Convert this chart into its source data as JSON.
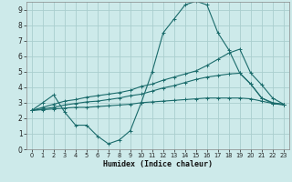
{
  "xlabel": "Humidex (Indice chaleur)",
  "background_color": "#cdeaea",
  "grid_color": "#aacece",
  "line_color": "#1a6b6b",
  "xlim": [
    -0.5,
    23.5
  ],
  "ylim": [
    0,
    9.5
  ],
  "xticks": [
    0,
    1,
    2,
    3,
    4,
    5,
    6,
    7,
    8,
    9,
    10,
    11,
    12,
    13,
    14,
    15,
    16,
    17,
    18,
    19,
    20,
    21,
    22,
    23
  ],
  "yticks": [
    0,
    1,
    2,
    3,
    4,
    5,
    6,
    7,
    8,
    9
  ],
  "series": [
    {
      "x": [
        0,
        1,
        2,
        3,
        4,
        5,
        6,
        7,
        8,
        9,
        10,
        11,
        12,
        13,
        14,
        15,
        16,
        17,
        18,
        19,
        20,
        21,
        22,
        23
      ],
      "y": [
        2.5,
        3.0,
        3.5,
        2.4,
        1.55,
        1.55,
        0.85,
        0.35,
        0.6,
        1.2,
        3.0,
        5.0,
        7.5,
        8.4,
        9.3,
        9.55,
        9.3,
        7.5,
        6.4,
        4.9,
        4.2,
        3.3,
        3.0,
        2.9
      ]
    },
    {
      "x": [
        0,
        1,
        2,
        3,
        4,
        5,
        6,
        7,
        8,
        9,
        10,
        11,
        12,
        13,
        14,
        15,
        16,
        17,
        18,
        19,
        20,
        21,
        22,
        23
      ],
      "y": [
        2.5,
        2.7,
        2.9,
        3.1,
        3.2,
        3.35,
        3.45,
        3.55,
        3.65,
        3.8,
        4.05,
        4.2,
        4.45,
        4.65,
        4.85,
        5.05,
        5.4,
        5.8,
        6.2,
        6.45,
        4.9,
        4.15,
        3.3,
        2.9
      ]
    },
    {
      "x": [
        0,
        1,
        2,
        3,
        4,
        5,
        6,
        7,
        8,
        9,
        10,
        11,
        12,
        13,
        14,
        15,
        16,
        17,
        18,
        19,
        20,
        21,
        22,
        23
      ],
      "y": [
        2.5,
        2.6,
        2.7,
        2.85,
        2.95,
        3.05,
        3.1,
        3.2,
        3.3,
        3.45,
        3.55,
        3.75,
        3.95,
        4.1,
        4.3,
        4.5,
        4.65,
        4.75,
        4.85,
        4.9,
        4.2,
        3.3,
        2.95,
        2.9
      ]
    },
    {
      "x": [
        0,
        1,
        2,
        3,
        4,
        5,
        6,
        7,
        8,
        9,
        10,
        11,
        12,
        13,
        14,
        15,
        16,
        17,
        18,
        19,
        20,
        21,
        22,
        23
      ],
      "y": [
        2.5,
        2.55,
        2.6,
        2.65,
        2.7,
        2.7,
        2.75,
        2.8,
        2.85,
        2.9,
        3.0,
        3.05,
        3.1,
        3.15,
        3.2,
        3.25,
        3.3,
        3.3,
        3.3,
        3.3,
        3.25,
        3.1,
        2.95,
        2.85
      ]
    }
  ]
}
